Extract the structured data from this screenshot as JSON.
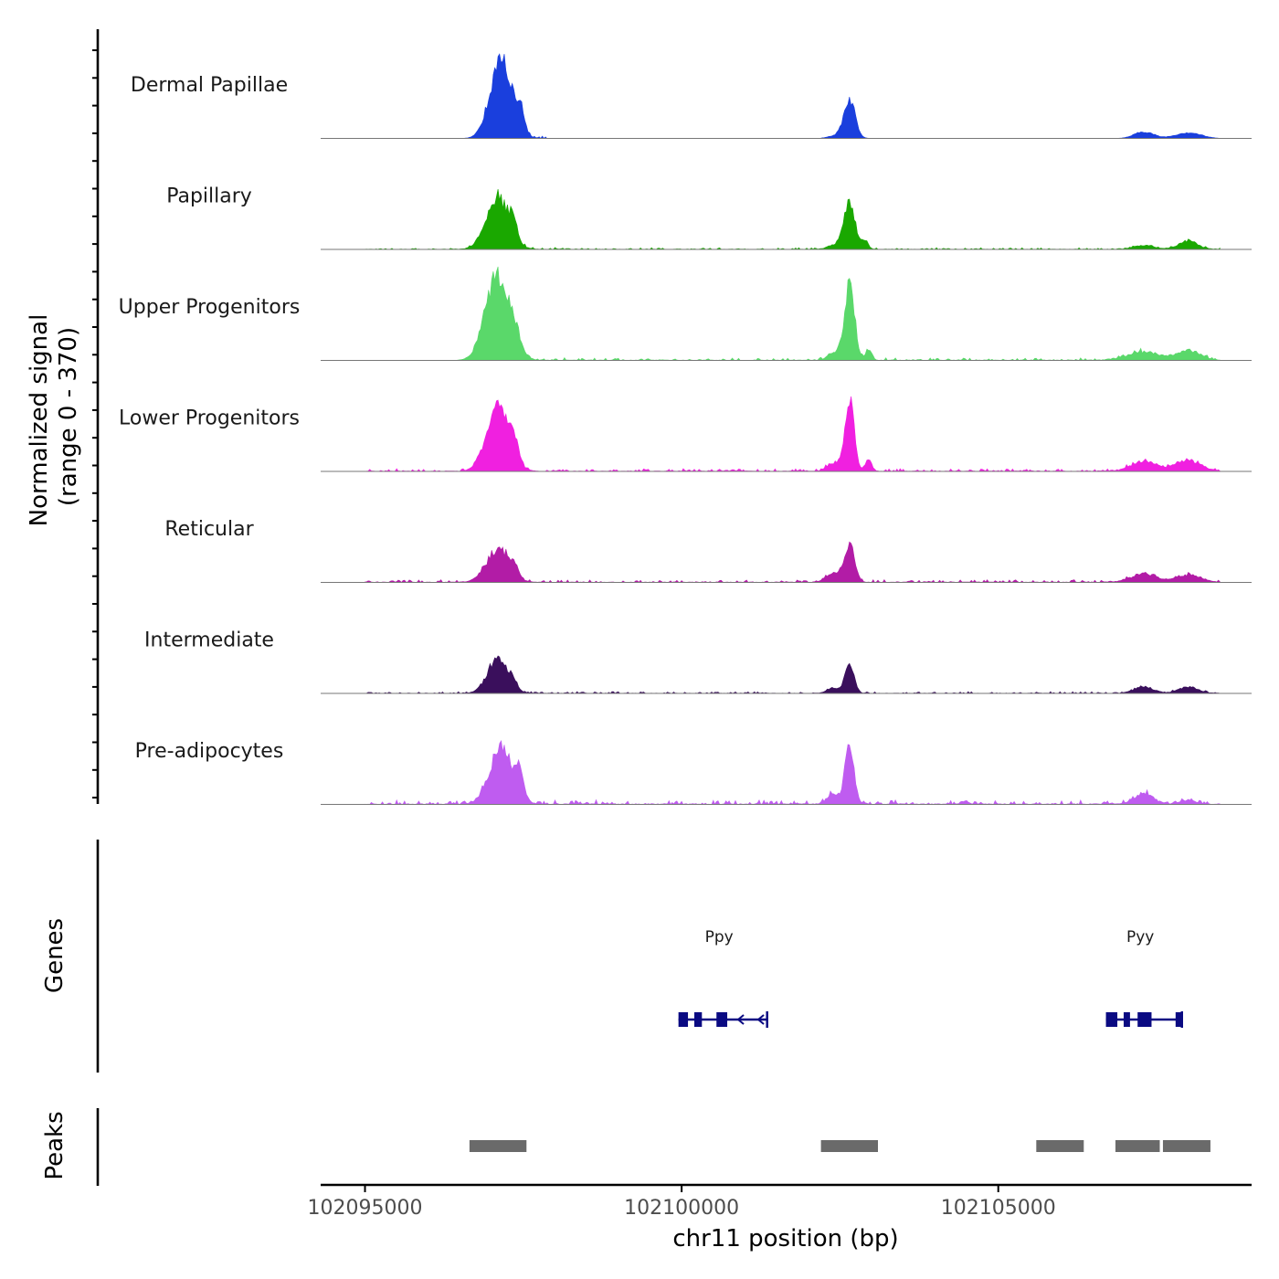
{
  "chart_data": {
    "type": "area",
    "title": "",
    "xlabel": "chr11 position (bp)",
    "ylabel_lines": [
      "Normalized signal",
      "(range 0 - 370)"
    ],
    "y_range": [
      0,
      370
    ],
    "xlim": [
      102094300,
      102109000
    ],
    "x_ticks": [
      102095000,
      102100000,
      102105000
    ],
    "x_tick_labels": [
      "102095000",
      "102100000",
      "102105000"
    ],
    "track_labels": {
      "genes": "Genes",
      "peaks": "Peaks"
    },
    "signal_domain": [
      102095000,
      102108500
    ],
    "tracks": [
      {
        "name": "Dermal Papillae",
        "color": "#1a3fdd",
        "peaks": [
          [
            102097150,
            95,
            170
          ],
          [
            102097450,
            25,
            60
          ],
          [
            102102650,
            48,
            90
          ],
          [
            102102400,
            3,
            100
          ],
          [
            102107300,
            8,
            150
          ],
          [
            102108000,
            7,
            200
          ]
        ],
        "noise": 3,
        "noise_range": [
          102096700,
          102097900
        ]
      },
      {
        "name": "Papillary",
        "color": "#1aa800",
        "peaks": [
          [
            102097100,
            62,
            180
          ],
          [
            102097350,
            18,
            60
          ],
          [
            102102650,
            55,
            90
          ],
          [
            102102400,
            5,
            100
          ],
          [
            102102900,
            10,
            50
          ],
          [
            102107300,
            5,
            150
          ],
          [
            102108000,
            10,
            150
          ]
        ],
        "noise": 2,
        "noise_range": [
          102095000,
          102108500
        ]
      },
      {
        "name": "Upper Progenitors",
        "color": "#5ad86a",
        "peaks": [
          [
            102097100,
            105,
            190
          ],
          [
            102097400,
            12,
            70
          ],
          [
            102102650,
            92,
            80
          ],
          [
            102102400,
            8,
            100
          ],
          [
            102102950,
            10,
            50
          ],
          [
            102107300,
            10,
            250
          ],
          [
            102108000,
            12,
            180
          ]
        ],
        "noise": 3,
        "noise_range": [
          102096700,
          102108500
        ]
      },
      {
        "name": "Lower Progenitors",
        "color": "#f020e0",
        "peaks": [
          [
            102097100,
            80,
            180
          ],
          [
            102097350,
            20,
            60
          ],
          [
            102102650,
            92,
            70
          ],
          [
            102102400,
            10,
            100
          ],
          [
            102102950,
            15,
            50
          ],
          [
            102107300,
            12,
            200
          ],
          [
            102108000,
            13,
            200
          ]
        ],
        "noise": 3,
        "noise_range": [
          102095000,
          102108500
        ]
      },
      {
        "name": "Reticular",
        "color": "#b21ca6",
        "peaks": [
          [
            102097100,
            40,
            180
          ],
          [
            102097350,
            12,
            60
          ],
          [
            102102650,
            47,
            80
          ],
          [
            102102400,
            10,
            120
          ],
          [
            102107300,
            10,
            200
          ],
          [
            102108000,
            9,
            200
          ]
        ],
        "noise": 3,
        "noise_range": [
          102095000,
          102108500
        ]
      },
      {
        "name": "Intermediate",
        "color": "#3a0f5c",
        "peaks": [
          [
            102097100,
            44,
            160
          ],
          [
            102097350,
            6,
            60
          ],
          [
            102102650,
            37,
            70
          ],
          [
            102102400,
            6,
            100
          ],
          [
            102107300,
            8,
            150
          ],
          [
            102108000,
            8,
            150
          ]
        ],
        "noise": 2,
        "noise_range": [
          102095000,
          102108500
        ]
      },
      {
        "name": "Pre-adipocytes",
        "color": "#bf5cf0",
        "peaks": [
          [
            102097150,
            70,
            180
          ],
          [
            102097450,
            28,
            60
          ],
          [
            102102650,
            75,
            70
          ],
          [
            102102400,
            12,
            100
          ],
          [
            102107300,
            12,
            150
          ],
          [
            102108000,
            5,
            120
          ]
        ],
        "noise": 5,
        "noise_range": [
          102095000,
          102108500
        ]
      }
    ],
    "genes": [
      {
        "name": "Ppy",
        "start": 102099950,
        "end": 102101350,
        "strand": "-",
        "exons": [
          [
            102099950,
            102100100
          ],
          [
            102100200,
            102100320
          ],
          [
            102100550,
            102100720
          ]
        ]
      },
      {
        "name": "Pyy",
        "start": 102106700,
        "end": 102107900,
        "strand": "-",
        "exons": [
          [
            102106700,
            102106880
          ],
          [
            102106980,
            102107080
          ],
          [
            102107200,
            102107420
          ],
          [
            102107800,
            102107900
          ]
        ]
      }
    ],
    "peaks": [
      [
        102096650,
        102097550
      ],
      [
        102102200,
        102103100
      ],
      [
        102105600,
        102106350
      ],
      [
        102106850,
        102107550
      ],
      [
        102107600,
        102108350
      ]
    ]
  }
}
